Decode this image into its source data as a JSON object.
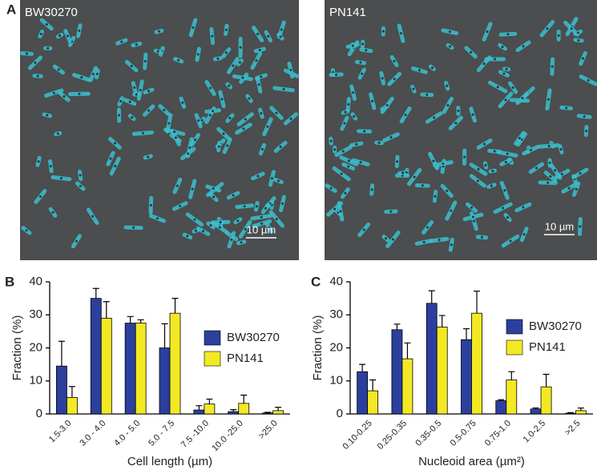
{
  "figure": {
    "panel_a": {
      "label": "A",
      "images": [
        {
          "caption": "BW30270",
          "scale_bar": "10 µm"
        },
        {
          "caption": "PN141",
          "scale_bar": "10 µm"
        }
      ]
    }
  },
  "chart_data": [
    {
      "type": "bar",
      "panel_label": "B",
      "x_label": "Cell length (µm)",
      "y_label": "Fraction (%)",
      "categories": [
        "1.5-3.0",
        "3.0 - 4.0",
        "4.0 - 5.0",
        "5.0 - 7.5",
        "7.5 -10.0",
        "10.0 -25.0",
        ">25.0"
      ],
      "series": [
        {
          "name": "BW30270",
          "color": "#2b3f9e",
          "values": [
            14.5,
            35,
            27.5,
            20,
            1.2,
            0.7,
            0.3
          ],
          "errors": [
            7.5,
            3,
            2,
            7.3,
            1.3,
            0.6,
            0.2
          ]
        },
        {
          "name": "PN141",
          "color": "#f2e924",
          "values": [
            5,
            29,
            27.5,
            30.5,
            3,
            3.2,
            1
          ],
          "errors": [
            3.3,
            5,
            1,
            4.5,
            1.5,
            2.5,
            1
          ]
        }
      ],
      "ylim": [
        0,
        40
      ],
      "yticks": [
        0,
        10,
        20,
        30,
        40
      ],
      "grid": false
    },
    {
      "type": "bar",
      "panel_label": "C",
      "x_label": "Nucleoid area (µm²)",
      "y_label": "Fraction (%)",
      "categories": [
        "0.10-0.25",
        "0.25-0.35",
        "0.35-0.5",
        "0.5-0.75",
        "0.75-1.0",
        "1.0-2.5",
        ">2.5"
      ],
      "series": [
        {
          "name": "BW30270",
          "color": "#2b3f9e",
          "values": [
            12.8,
            25.5,
            33.5,
            22.5,
            4,
            1.5,
            0.2
          ],
          "errors": [
            2.2,
            1.7,
            3.8,
            3.3,
            0.3,
            0.3,
            0.2
          ]
        },
        {
          "name": "PN141",
          "color": "#f2e924",
          "values": [
            7,
            16.7,
            26.3,
            30.5,
            10.3,
            8.2,
            1
          ],
          "errors": [
            3.3,
            4.8,
            3.5,
            6.7,
            2.5,
            3.8,
            0.8
          ]
        }
      ],
      "ylim": [
        0,
        40
      ],
      "yticks": [
        0,
        10,
        20,
        30,
        40
      ],
      "grid": false
    }
  ]
}
